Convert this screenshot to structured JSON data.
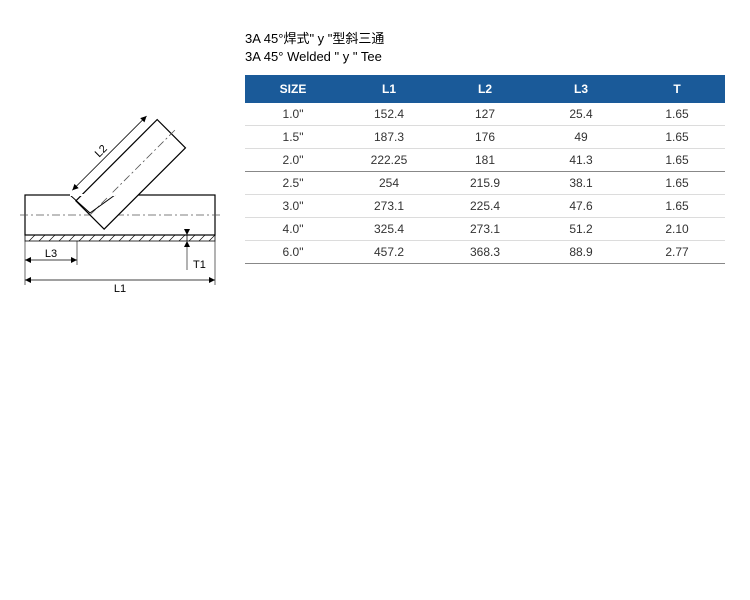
{
  "title": {
    "line1": "3A 45°焊式\" y \"型斜三通",
    "line2": "3A 45° Welded \" y \" Tee"
  },
  "diagram": {
    "labels": {
      "L1": "L1",
      "L2": "L2",
      "L3": "L3",
      "T1": "T1"
    },
    "stroke": "#000000",
    "hatch": "#000000",
    "centerline": "#555555",
    "bg": "#ffffff"
  },
  "table": {
    "header_bg": "#1a5a99",
    "header_fg": "#ffffff",
    "row_border": "#dcdcdc",
    "section_border": "#888888",
    "columns": [
      "SIZE",
      "L1",
      "L2",
      "L3",
      "T"
    ],
    "rows": [
      {
        "cells": [
          "1.0\"",
          "152.4",
          "127",
          "25.4",
          "1.65"
        ],
        "section_end": false
      },
      {
        "cells": [
          "1.5\"",
          "187.3",
          "176",
          "49",
          "1.65"
        ],
        "section_end": false
      },
      {
        "cells": [
          "2.0\"",
          "222.25",
          "181",
          "41.3",
          "1.65"
        ],
        "section_end": true
      },
      {
        "cells": [
          "2.5\"",
          "254",
          "215.9",
          "38.1",
          "1.65"
        ],
        "section_end": false
      },
      {
        "cells": [
          "3.0\"",
          "273.1",
          "225.4",
          "47.6",
          "1.65"
        ],
        "section_end": false
      },
      {
        "cells": [
          "4.0\"",
          "325.4",
          "273.1",
          "51.2",
          "2.10"
        ],
        "section_end": false
      },
      {
        "cells": [
          "6.0\"",
          "457.2",
          "368.3",
          "88.9",
          "2.77"
        ],
        "section_end": true
      }
    ]
  }
}
